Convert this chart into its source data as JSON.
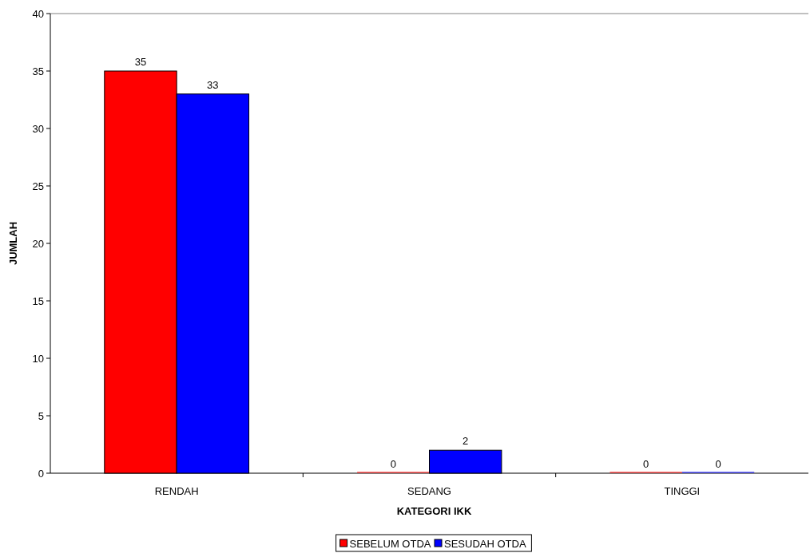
{
  "chart_data": {
    "type": "bar",
    "xlabel": "KATEGORI IKK",
    "ylabel": "JUMLAH",
    "categories": [
      "RENDAH",
      "SEDANG",
      "TINGGI"
    ],
    "series": [
      {
        "name": "SEBELUM OTDA",
        "color": "#ff0000",
        "values": [
          35,
          0,
          0
        ]
      },
      {
        "name": "SESUDAH OTDA",
        "color": "#0000ff",
        "values": [
          33,
          2,
          0
        ]
      }
    ],
    "ylim": [
      0,
      40
    ],
    "yticks": [
      0,
      5,
      10,
      15,
      20,
      25,
      30,
      35,
      40
    ],
    "data_labels": true,
    "legend": "bottom",
    "grid": false
  }
}
